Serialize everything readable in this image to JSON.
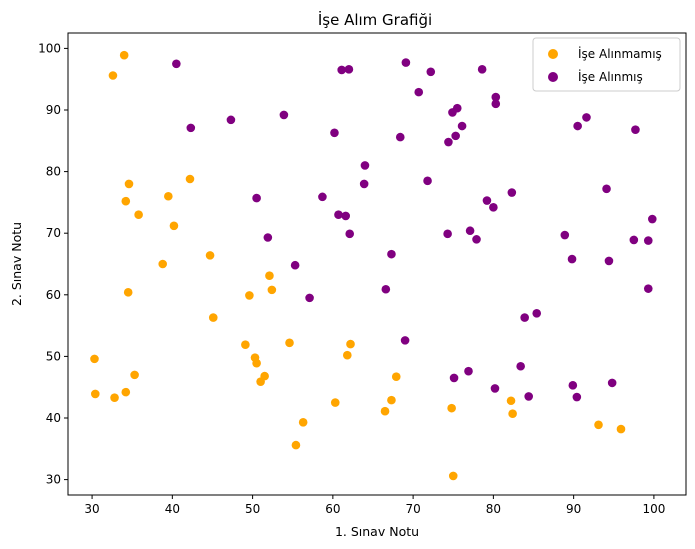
{
  "chart_data": {
    "type": "scatter",
    "title": "İşe Alım Grafiği",
    "xlabel": "1. Sınav Notu",
    "ylabel": "2. Sınav Notu",
    "xlim": [
      27,
      104
    ],
    "ylim": [
      27.5,
      102.5
    ],
    "xticks": [
      30,
      40,
      50,
      60,
      70,
      80,
      90,
      100
    ],
    "yticks": [
      30,
      40,
      50,
      60,
      70,
      80,
      90,
      100
    ],
    "grid": false,
    "legend_position": "top-right",
    "series": [
      {
        "name": "İşe Alınmamış",
        "color": "#FFA500",
        "points": [
          [
            34.0,
            98.9
          ],
          [
            32.6,
            95.6
          ],
          [
            34.6,
            78.0
          ],
          [
            42.2,
            78.8
          ],
          [
            39.5,
            76.0
          ],
          [
            34.2,
            75.2
          ],
          [
            35.8,
            73.0
          ],
          [
            40.2,
            71.2
          ],
          [
            44.7,
            66.4
          ],
          [
            38.8,
            65.0
          ],
          [
            52.1,
            63.1
          ],
          [
            34.5,
            60.4
          ],
          [
            52.4,
            60.8
          ],
          [
            49.6,
            59.9
          ],
          [
            45.1,
            56.3
          ],
          [
            49.1,
            51.9
          ],
          [
            54.6,
            52.2
          ],
          [
            62.2,
            52.0
          ],
          [
            61.8,
            50.2
          ],
          [
            50.3,
            49.8
          ],
          [
            30.3,
            49.6
          ],
          [
            50.5,
            48.9
          ],
          [
            35.3,
            47.0
          ],
          [
            51.5,
            46.8
          ],
          [
            51.0,
            45.9
          ],
          [
            67.9,
            46.7
          ],
          [
            34.2,
            44.2
          ],
          [
            30.4,
            43.9
          ],
          [
            32.8,
            43.3
          ],
          [
            67.3,
            42.9
          ],
          [
            82.2,
            42.8
          ],
          [
            60.3,
            42.5
          ],
          [
            74.8,
            41.6
          ],
          [
            66.5,
            41.1
          ],
          [
            82.4,
            40.7
          ],
          [
            56.3,
            39.3
          ],
          [
            93.1,
            38.9
          ],
          [
            95.9,
            38.2
          ],
          [
            55.4,
            35.6
          ],
          [
            75.0,
            30.6
          ]
        ]
      },
      {
        "name": "İşe Alınmış",
        "color": "#800080",
        "points": [
          [
            69.1,
            97.7
          ],
          [
            40.5,
            97.5
          ],
          [
            61.1,
            96.5
          ],
          [
            62.0,
            96.6
          ],
          [
            78.6,
            96.6
          ],
          [
            72.2,
            96.2
          ],
          [
            70.7,
            92.9
          ],
          [
            80.3,
            92.1
          ],
          [
            80.3,
            91.0
          ],
          [
            75.5,
            90.3
          ],
          [
            74.9,
            89.6
          ],
          [
            91.6,
            88.8
          ],
          [
            47.3,
            88.4
          ],
          [
            53.9,
            89.2
          ],
          [
            76.1,
            87.4
          ],
          [
            90.5,
            87.4
          ],
          [
            42.3,
            87.1
          ],
          [
            97.7,
            86.8
          ],
          [
            60.2,
            86.3
          ],
          [
            68.4,
            85.6
          ],
          [
            75.3,
            85.8
          ],
          [
            74.4,
            84.8
          ],
          [
            64.0,
            81.0
          ],
          [
            63.9,
            78.0
          ],
          [
            71.8,
            78.5
          ],
          [
            58.7,
            75.9
          ],
          [
            50.5,
            75.7
          ],
          [
            82.3,
            76.6
          ],
          [
            94.1,
            77.2
          ],
          [
            79.2,
            75.3
          ],
          [
            80.0,
            74.2
          ],
          [
            60.7,
            73.0
          ],
          [
            61.6,
            72.8
          ],
          [
            99.8,
            72.3
          ],
          [
            62.1,
            69.9
          ],
          [
            51.9,
            69.3
          ],
          [
            74.3,
            69.9
          ],
          [
            77.1,
            70.4
          ],
          [
            77.9,
            69.0
          ],
          [
            88.9,
            69.7
          ],
          [
            97.5,
            68.9
          ],
          [
            99.3,
            68.8
          ],
          [
            67.3,
            66.6
          ],
          [
            89.8,
            65.8
          ],
          [
            94.4,
            65.5
          ],
          [
            55.3,
            64.8
          ],
          [
            66.6,
            60.9
          ],
          [
            99.3,
            61.0
          ],
          [
            57.1,
            59.5
          ],
          [
            85.4,
            57.0
          ],
          [
            83.9,
            56.3
          ],
          [
            69.0,
            52.6
          ],
          [
            83.4,
            48.4
          ],
          [
            76.9,
            47.6
          ],
          [
            75.1,
            46.5
          ],
          [
            94.8,
            45.7
          ],
          [
            89.9,
            45.3
          ],
          [
            80.2,
            44.8
          ],
          [
            84.4,
            43.5
          ],
          [
            90.4,
            43.4
          ]
        ]
      }
    ]
  }
}
